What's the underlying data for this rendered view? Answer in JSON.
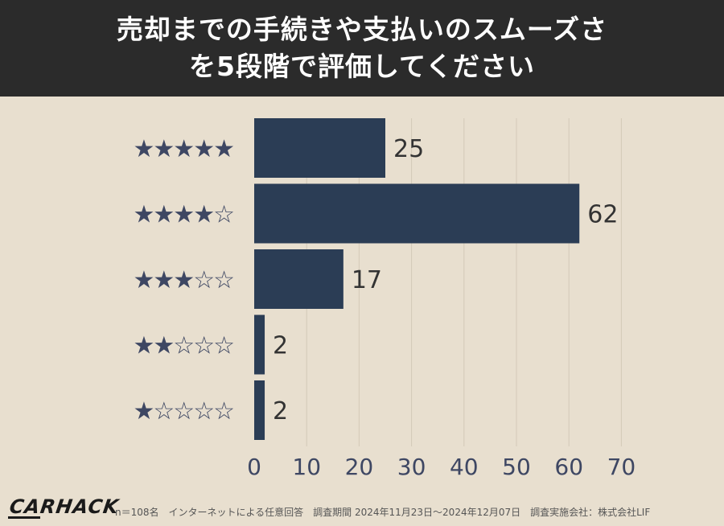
{
  "header": {
    "title_line1": "売却までの手続きや支払いのスムーズさ",
    "title_line2": "を5段階で評価してください"
  },
  "footer": {
    "logo": "CARHACK",
    "note": "n＝108名　インターネットによる任意回答　調査期間 2024年11月23日～2024年12月07日　調査実施会社：株式会社LIF"
  },
  "colors": {
    "bar": "#2b3d55",
    "star": "#3e4763",
    "background": "#e8dfcf",
    "header_bg": "#2b2b2b",
    "grid": "#d3cab8"
  },
  "chart_data": {
    "type": "bar",
    "orientation": "horizontal",
    "categories": [
      "★★★★★",
      "★★★★☆",
      "★★★☆☆",
      "★★☆☆☆",
      "★☆☆☆☆"
    ],
    "values": [
      25,
      62,
      17,
      2,
      2
    ],
    "xlim": [
      0,
      70
    ],
    "xticks": [
      0,
      10,
      20,
      30,
      40,
      50,
      60,
      70
    ],
    "grid": true,
    "data_labels": true
  }
}
